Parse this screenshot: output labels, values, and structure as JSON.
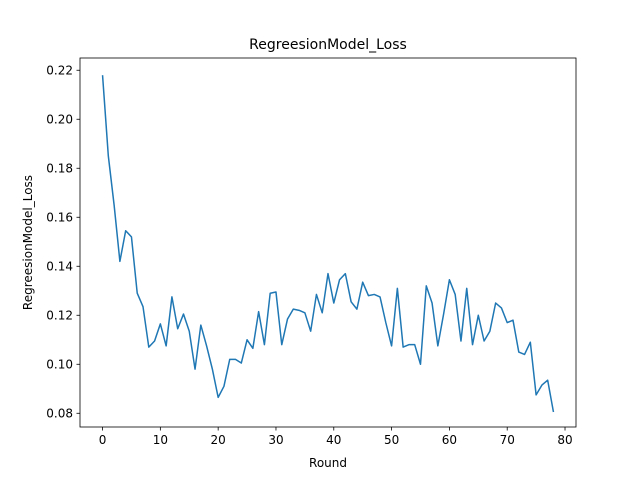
{
  "chart_data": {
    "type": "line",
    "title": "RegreesionModel_Loss",
    "xlabel": "Round",
    "ylabel": "RegreesionModel_Loss",
    "xlim": [
      -3.9,
      81.9
    ],
    "ylim": [
      0.0744,
      0.225
    ],
    "xticks": [
      0,
      10,
      20,
      30,
      40,
      50,
      60,
      70,
      80
    ],
    "xtick_labels": [
      "0",
      "10",
      "20",
      "30",
      "40",
      "50",
      "60",
      "70",
      "80"
    ],
    "yticks": [
      0.08,
      0.1,
      0.12,
      0.14,
      0.16,
      0.18,
      0.2,
      0.22
    ],
    "ytick_labels": [
      "0.08",
      "0.10",
      "0.12",
      "0.14",
      "0.16",
      "0.18",
      "0.20",
      "0.22"
    ],
    "grid": false,
    "legend": "none",
    "line_color": "#1f77b4",
    "series": [
      {
        "x": [
          0,
          1,
          2,
          3,
          4,
          5,
          6,
          7,
          8,
          9,
          10,
          11,
          12,
          13,
          14,
          15,
          16,
          17,
          18,
          19,
          20,
          21,
          22,
          23,
          24,
          25,
          26,
          27,
          28,
          29,
          30,
          31,
          32,
          33,
          34,
          35,
          36,
          37,
          38,
          39,
          40,
          41,
          42,
          43,
          44,
          45,
          46,
          47,
          48,
          49,
          50,
          51,
          52,
          53,
          54,
          55,
          56,
          57,
          58,
          59,
          60,
          61,
          62,
          63,
          64,
          65,
          66,
          67,
          68,
          69,
          70,
          71,
          72,
          73,
          74,
          75,
          76,
          77,
          78
        ],
        "values": [
          0.218,
          0.185,
          0.165,
          0.142,
          0.1545,
          0.152,
          0.129,
          0.1235,
          0.107,
          0.1095,
          0.1165,
          0.1075,
          0.1275,
          0.1145,
          0.1205,
          0.1135,
          0.098,
          0.116,
          0.1075,
          0.098,
          0.0865,
          0.091,
          0.102,
          0.102,
          0.1005,
          0.11,
          0.1065,
          0.1215,
          0.108,
          0.129,
          0.1295,
          0.108,
          0.1185,
          0.1225,
          0.122,
          0.121,
          0.1135,
          0.1285,
          0.121,
          0.137,
          0.125,
          0.1345,
          0.137,
          0.1255,
          0.1225,
          0.1335,
          0.128,
          0.1285,
          0.1275,
          0.117,
          0.1075,
          0.131,
          0.107,
          0.108,
          0.108,
          0.1,
          0.132,
          0.125,
          0.1075,
          0.1205,
          0.1345,
          0.1285,
          0.1095,
          0.131,
          0.108,
          0.12,
          0.1095,
          0.1135,
          0.125,
          0.123,
          0.117,
          0.118,
          0.105,
          0.104,
          0.109,
          0.0875,
          0.0915,
          0.0935,
          0.0805
        ]
      }
    ]
  }
}
